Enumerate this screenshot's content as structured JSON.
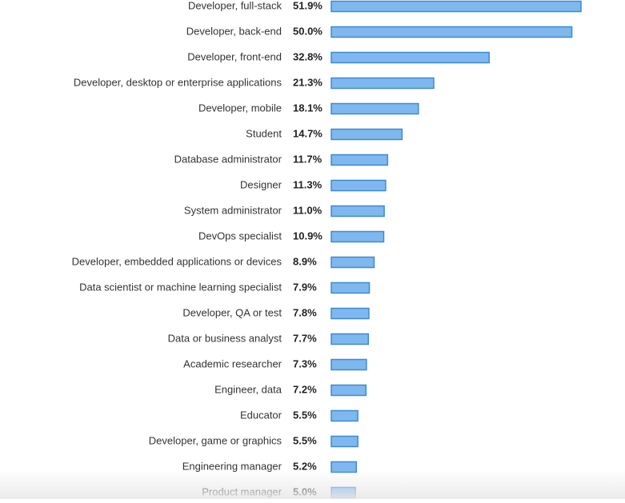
{
  "colors": {
    "bar_fill": "#7fb8ee",
    "bar_stroke": "#3f89d6",
    "label_text": "#333333",
    "value_text": "#222222"
  },
  "chart_data": {
    "type": "bar",
    "orientation": "horizontal",
    "title": "",
    "xlabel": "",
    "ylabel": "",
    "xlim": [
      0,
      51.9
    ],
    "grid": false,
    "legend": "none",
    "value_suffix": "%",
    "categories": [
      "Developer, full-stack",
      "Developer, back-end",
      "Developer, front-end",
      "Developer, desktop or enterprise applications",
      "Developer, mobile",
      "Student",
      "Database administrator",
      "Designer",
      "System administrator",
      "DevOps specialist",
      "Developer, embedded applications or devices",
      "Data scientist or machine learning specialist",
      "Developer, QA or test",
      "Data or business analyst",
      "Academic researcher",
      "Engineer, data",
      "Educator",
      "Developer, game or graphics",
      "Engineering manager",
      "Product manager"
    ],
    "values": [
      51.9,
      50.0,
      32.8,
      21.3,
      18.1,
      14.7,
      11.7,
      11.3,
      11.0,
      10.9,
      8.9,
      7.9,
      7.8,
      7.7,
      7.3,
      7.2,
      5.5,
      5.5,
      5.2,
      5.0
    ],
    "value_labels": [
      "51.9%",
      "50.0%",
      "32.8%",
      "21.3%",
      "18.1%",
      "14.7%",
      "11.7%",
      "11.3%",
      "11.0%",
      "10.9%",
      "8.9%",
      "7.9%",
      "7.8%",
      "7.7%",
      "7.3%",
      "7.2%",
      "5.5%",
      "5.5%",
      "5.2%",
      "5.0%"
    ]
  }
}
